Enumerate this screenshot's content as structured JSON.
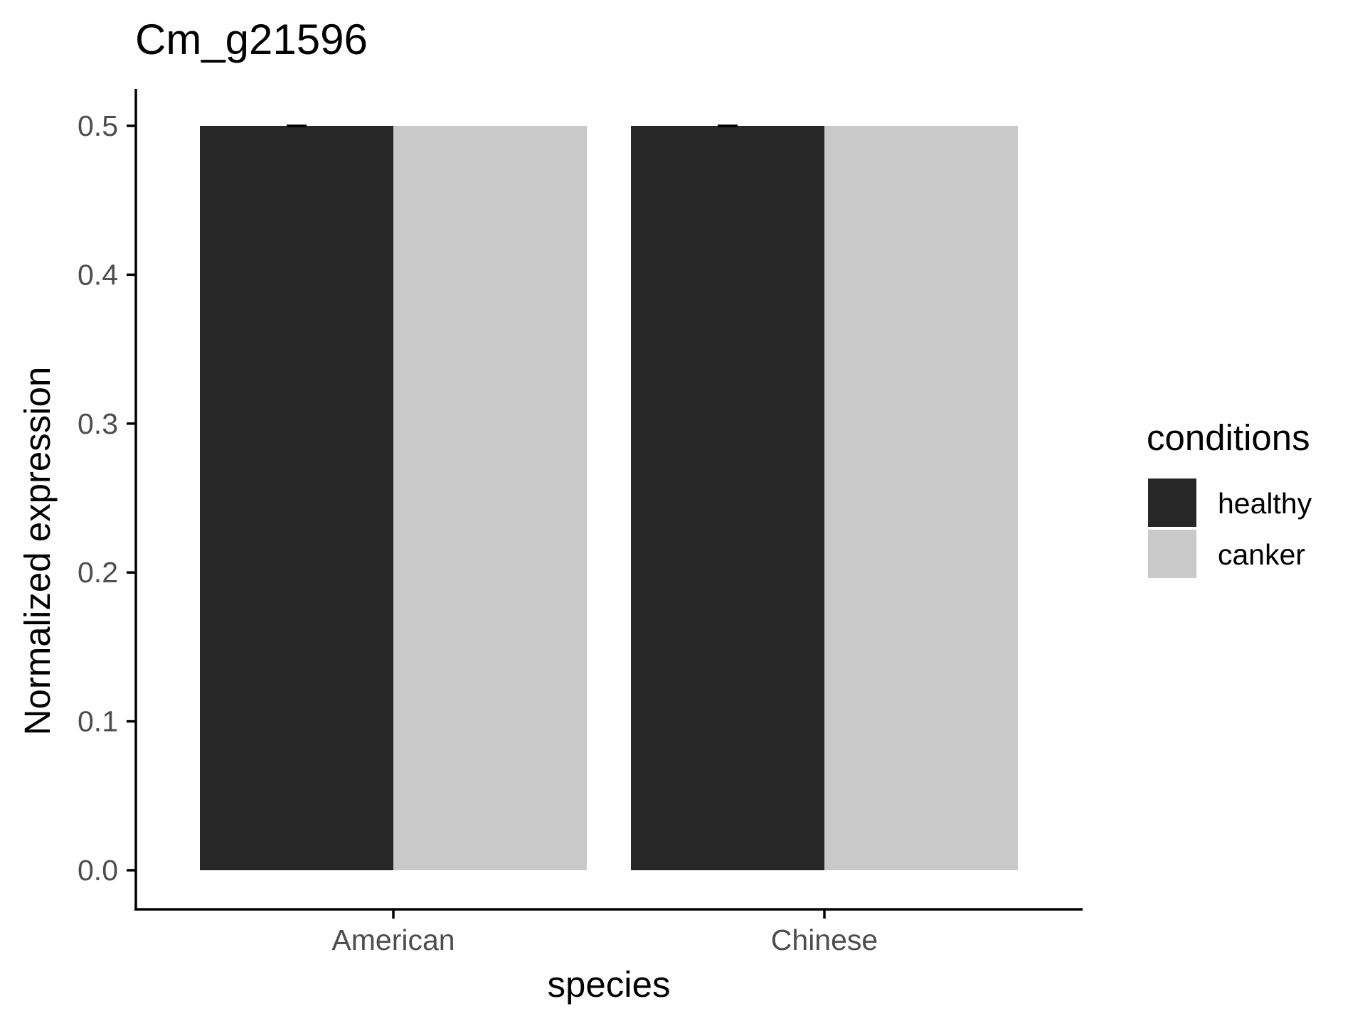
{
  "chart_data": {
    "type": "bar",
    "title": "Cm_g21596",
    "xlabel": "species",
    "ylabel": "Normalized expression",
    "categories": [
      "American",
      "Chinese"
    ],
    "series": [
      {
        "name": "healthy",
        "values": [
          0.5,
          0.5
        ],
        "color": "#272727"
      },
      {
        "name": "canker",
        "values": [
          0.5,
          0.5
        ],
        "color": "#c9c9c9"
      }
    ],
    "error_bars": {
      "healthy": [
        0.0,
        0.0
      ]
    },
    "ylim": [
      0,
      0.5
    ],
    "yticks": [
      "0.0",
      "0.1",
      "0.2",
      "0.3",
      "0.4",
      "0.5"
    ],
    "legend": {
      "title": "conditions",
      "position": "right"
    },
    "grid": false
  }
}
